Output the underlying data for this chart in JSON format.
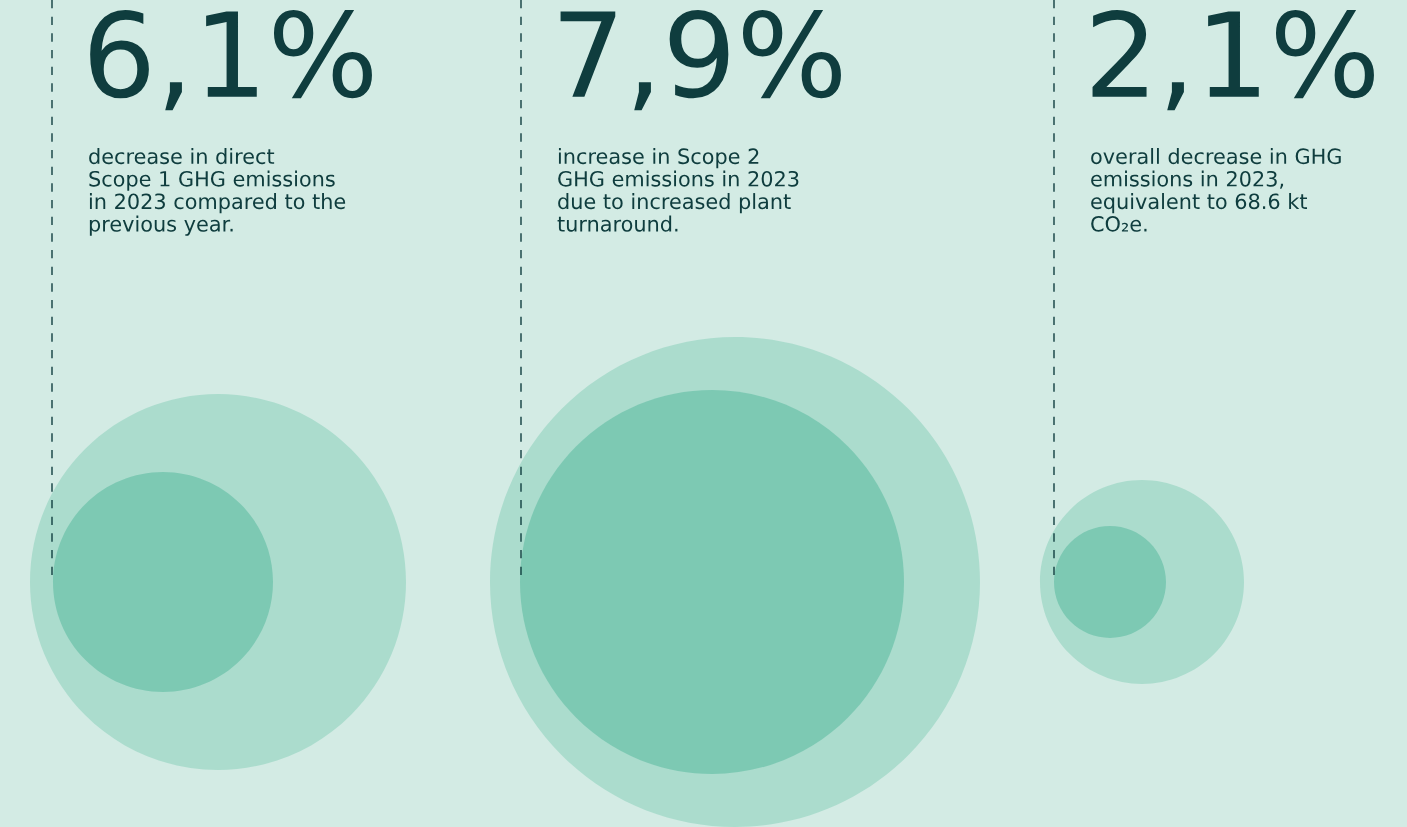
{
  "chart_data": {
    "type": "other",
    "categories": [
      null,
      null,
      null
    ],
    "values": [
      6.1,
      7.9,
      2.1
    ],
    "value_labels": [
      "6,1%",
      "7,9%",
      "2,1%"
    ],
    "annotations": [
      "decrease in direct\nScope 1 GHG emissions\nin 2023 compared to the\nprevious year.",
      "increase in Scope 2\nGHG emissions in 2023\ndue to increased plant\nturnaround.",
      "overall decrease in GHG\nemissions in 2023,\nequivalent to 68.6 kt\nCO₂e."
    ]
  }
}
